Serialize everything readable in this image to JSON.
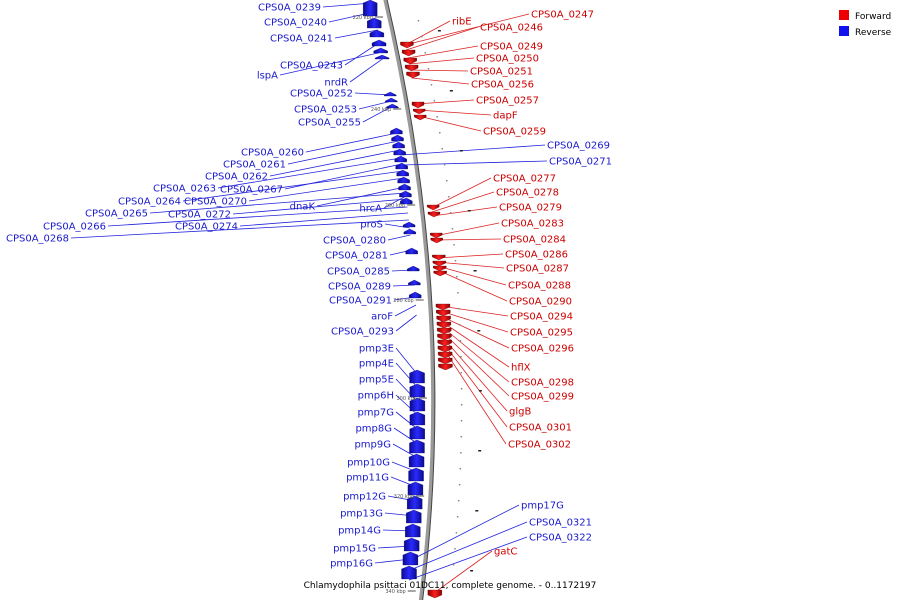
{
  "caption": "Chlamydophila psittaci 01DC11, complete genome. - 0..1172197",
  "legend": [
    {
      "label": "Forward",
      "color": "#ee0000"
    },
    {
      "label": "Reverse",
      "color": "#1111ee"
    }
  ],
  "ticks": [
    "220 kbp",
    "240 kbp",
    "260 kbp",
    "280 kbp",
    "300 kbp",
    "320 kbp",
    "340 kbp"
  ],
  "forward_labels": [
    "CPS0A_0247",
    "ribE",
    "CPS0A_0246",
    "CPS0A_0249",
    "CPS0A_0250",
    "CPS0A_0251",
    "CPS0A_0256",
    "CPS0A_0257",
    "dapF",
    "CPS0A_0259",
    "CPS0A_0277",
    "CPS0A_0278",
    "CPS0A_0279",
    "CPS0A_0283",
    "CPS0A_0284",
    "CPS0A_0286",
    "CPS0A_0287",
    "CPS0A_0288",
    "CPS0A_0290",
    "CPS0A_0294",
    "CPS0A_0295",
    "CPS0A_0296",
    "hflX",
    "CPS0A_0298",
    "CPS0A_0299",
    "glgB",
    "CPS0A_0301",
    "CPS0A_0302",
    "gatC"
  ],
  "reverse_labels": [
    "CPS0A_0239",
    "CPS0A_0240",
    "CPS0A_0241",
    "CPS0A_0243",
    "lspA",
    "nrdR",
    "CPS0A_0252",
    "CPS0A_0253",
    "CPS0A_0255",
    "CPS0A_0260",
    "CPS0A_0261",
    "CPS0A_0262",
    "CPS0A_0263",
    "CPS0A_0267",
    "CPS0A_0264",
    "CPS0A_0270",
    "dnaK",
    "CPS0A_0265",
    "CPS0A_0272",
    "CPS0A_0266",
    "CPS0A_0274",
    "CPS0A_0268",
    "hrcA",
    "proS",
    "CPS0A_0280",
    "CPS0A_0281",
    "CPS0A_0285",
    "CPS0A_0289",
    "CPS0A_0291",
    "aroF",
    "CPS0A_0293",
    "pmp3E",
    "pmp4E",
    "pmp5E",
    "pmp6H",
    "pmp7G",
    "pmp8G",
    "pmp9G",
    "pmp10G",
    "pmp11G",
    "pmp12G",
    "pmp13G",
    "pmp14G",
    "pmp15G",
    "pmp16G",
    "CPS0A_0269",
    "CPS0A_0271",
    "pmp17G",
    "CPS0A_0321",
    "CPS0A_0322"
  ]
}
